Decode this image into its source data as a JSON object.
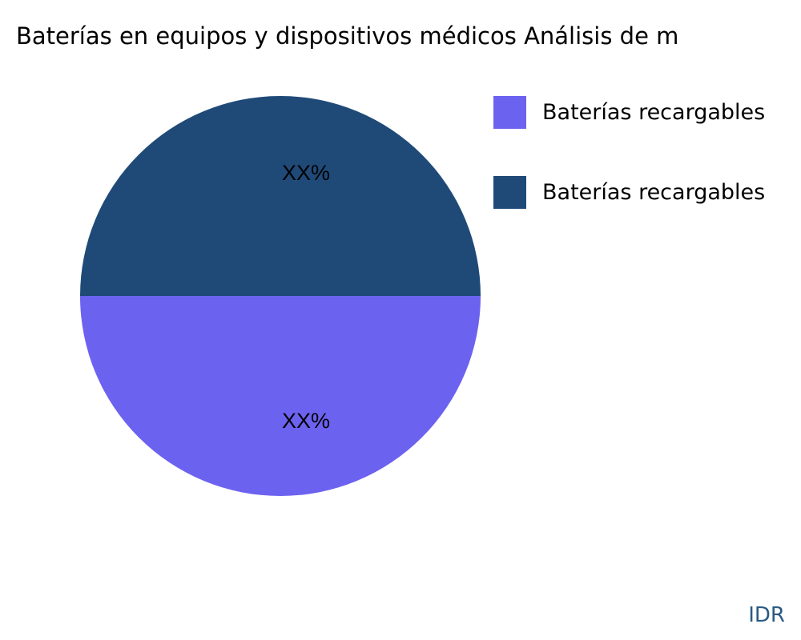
{
  "chart_data": {
    "type": "pie",
    "title": "Baterías en equipos y dispositivos médicos Análisis de m",
    "slices": [
      {
        "name": "Baterías recargables",
        "value": 50,
        "label": "XX%",
        "color": "#6c62f0"
      },
      {
        "name": "Baterías recargables",
        "value": 50,
        "label": "XX%",
        "color": "#1f4a78"
      }
    ],
    "legend_position": "right"
  },
  "brand": "IDR"
}
